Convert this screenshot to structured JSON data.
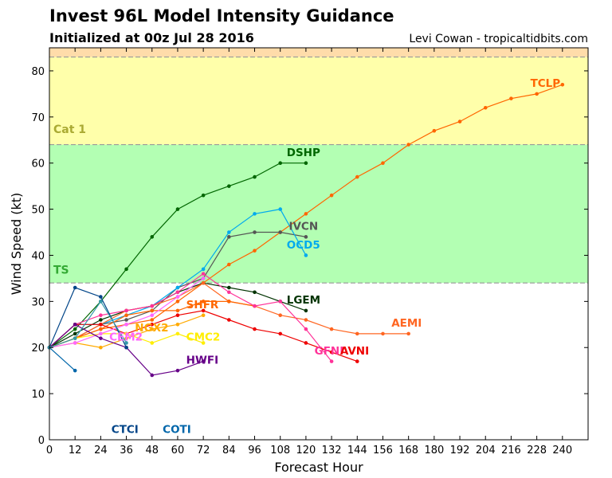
{
  "header": {
    "title": "Invest 96L Model Intensity Guidance",
    "subtitle": "Initialized at 00z Jul 28 2016",
    "credit": "Levi Cowan - tropicaltidbits.com"
  },
  "chart_data": {
    "type": "line",
    "xlabel": "Forecast Hour",
    "ylabel": "Wind Speed (kt)",
    "xlim": [
      0,
      252
    ],
    "ylim": [
      0,
      85
    ],
    "xticks": [
      0,
      12,
      24,
      36,
      48,
      60,
      72,
      84,
      96,
      108,
      120,
      132,
      144,
      156,
      168,
      180,
      192,
      204,
      216,
      228,
      240
    ],
    "yticks": [
      0,
      10,
      20,
      30,
      40,
      50,
      60,
      70,
      80
    ],
    "bands": [
      {
        "label": "TS",
        "from": 34,
        "to": 64,
        "color": "#b3ffb3",
        "label_color": "#33aa33",
        "label_y": 36
      },
      {
        "label": "Cat 1",
        "from": 64,
        "to": 83,
        "color": "#ffffaa",
        "label_color": "#aaaa33",
        "label_y": 66.5
      },
      {
        "label": "",
        "from": 83,
        "to": 85,
        "color": "#ffdcaa",
        "label_color": "#000000",
        "label_y": 0
      }
    ],
    "series": [
      {
        "name": "TCLP",
        "color": "#ff6600",
        "label_at": [
          225,
          76.5
        ],
        "x": [
          0,
          12,
          24,
          36,
          48,
          60,
          72,
          84,
          96,
          108,
          120,
          132,
          144,
          156,
          168,
          180,
          192,
          204,
          216,
          228,
          240
        ],
        "y": [
          20,
          22,
          24,
          25,
          26,
          30,
          34,
          38,
          41,
          45,
          49,
          53,
          57,
          60,
          64,
          67,
          69,
          72,
          74,
          75,
          77
        ]
      },
      {
        "name": "DSHP",
        "color": "#006600",
        "label_at": [
          111,
          61.5
        ],
        "x": [
          0,
          12,
          24,
          36,
          48,
          60,
          72,
          84,
          96,
          108,
          120
        ],
        "y": [
          20,
          24,
          30,
          37,
          44,
          50,
          53,
          55,
          57,
          60,
          60
        ]
      },
      {
        "name": "IVCN",
        "color": "#555555",
        "label_at": [
          112,
          45.5
        ],
        "x": [
          0,
          12,
          24,
          36,
          48,
          60,
          72,
          84,
          96,
          108,
          120
        ],
        "y": [
          20,
          22,
          25,
          26,
          28,
          33,
          35,
          44,
          45,
          45,
          44
        ]
      },
      {
        "name": "OCD5",
        "color": "#00aaee",
        "label_at": [
          111,
          41.5
        ],
        "x": [
          0,
          12,
          24,
          36,
          48,
          60,
          72,
          84,
          96,
          108,
          120
        ],
        "y": [
          20,
          25,
          25,
          27,
          29,
          33,
          37,
          45,
          49,
          50,
          40
        ]
      },
      {
        "name": "LGEM",
        "color": "#003300",
        "label_at": [
          111,
          29.5
        ],
        "x": [
          0,
          12,
          24,
          36,
          48,
          60,
          72,
          84,
          96,
          108,
          120
        ],
        "y": [
          20,
          23,
          26,
          28,
          29,
          32,
          34,
          33,
          32,
          30,
          28
        ]
      },
      {
        "name": "AEMI",
        "color": "#ff6622",
        "label_at": [
          160,
          24.5
        ],
        "x": [
          0,
          12,
          24,
          36,
          48,
          60,
          72,
          84,
          96,
          108,
          120,
          132,
          144,
          156,
          168
        ],
        "y": [
          20,
          22,
          25,
          28,
          29,
          31,
          34,
          30,
          29,
          27,
          26,
          24,
          23,
          23,
          23
        ]
      },
      {
        "name": "SHFR",
        "color": "#ff6600",
        "label_at": [
          64,
          28.5
        ],
        "x": [
          0,
          12,
          24,
          36,
          48,
          60,
          72,
          84,
          96
        ],
        "y": [
          20,
          22,
          24,
          27,
          28,
          28,
          30,
          30,
          29
        ]
      },
      {
        "name": "GFNI",
        "color": "#ff3399",
        "label_at": [
          124,
          18.5
        ],
        "x": [
          0,
          12,
          24,
          36,
          48,
          60,
          72,
          84,
          96,
          108,
          120,
          132
        ],
        "y": [
          20,
          25,
          27,
          28,
          29,
          32,
          36,
          32,
          29,
          30,
          24,
          17
        ]
      },
      {
        "name": "AVNI",
        "color": "#ee0000",
        "label_at": [
          136,
          18.5
        ],
        "x": [
          0,
          12,
          24,
          36,
          48,
          60,
          72,
          84,
          96,
          108,
          120,
          132,
          144
        ],
        "y": [
          20,
          25,
          25,
          23,
          25,
          27,
          28,
          26,
          24,
          23,
          21,
          19,
          17
        ]
      },
      {
        "name": "NGX2",
        "color": "#ffaa00",
        "label_at": [
          40,
          23.5
        ],
        "x": [
          0,
          12,
          24,
          36,
          48,
          60,
          72
        ],
        "y": [
          20,
          21,
          20,
          22,
          24,
          25,
          27
        ]
      },
      {
        "name": "CMC2",
        "color": "#ffee00",
        "label_at": [
          64,
          21.5
        ],
        "x": [
          0,
          12,
          24,
          36,
          48,
          60,
          72
        ],
        "y": [
          20,
          22,
          23,
          23,
          21,
          23,
          21
        ]
      },
      {
        "name": "CEM2",
        "color": "#ff66ff",
        "label_at": [
          28,
          21.5
        ],
        "x": [
          0,
          12,
          24,
          36,
          48,
          60,
          72
        ],
        "y": [
          20,
          21,
          23,
          25,
          27,
          31,
          35
        ]
      },
      {
        "name": "HWFI",
        "color": "#660088",
        "label_at": [
          64,
          16.5
        ],
        "x": [
          0,
          12,
          24,
          36,
          48,
          60,
          72
        ],
        "y": [
          20,
          25,
          22,
          20,
          14,
          15,
          17
        ]
      },
      {
        "name": "CTCI",
        "color": "#004488",
        "label_at": [
          29,
          1.5
        ],
        "x": [
          0,
          12,
          24,
          36
        ],
        "y": [
          20,
          33,
          31,
          20
        ]
      },
      {
        "name": "COTI",
        "color": "#0066aa",
        "label_at": [
          53,
          1.5
        ],
        "x": [
          0,
          12
        ],
        "y": [
          20,
          15
        ]
      },
      {
        "name": "",
        "color": "#3399aa",
        "label_at": null,
        "x": [
          0,
          12,
          24,
          36
        ],
        "y": [
          20,
          22,
          30,
          21
        ]
      }
    ]
  }
}
